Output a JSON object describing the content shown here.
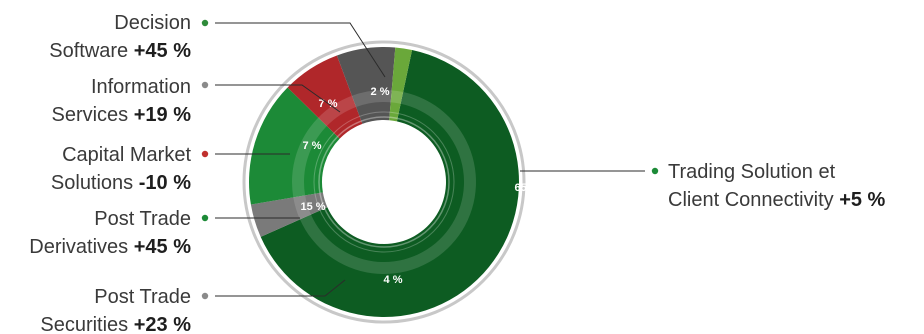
{
  "chart_data": {
    "type": "pie",
    "style": "donut",
    "title": "",
    "colors": {
      "dark_green": "#0d5c22",
      "green": "#1c8a37",
      "light_green": "#6aa83a",
      "dark_gray": "#555555",
      "gray": "#7a7a7a",
      "red": "#b0272a",
      "outline": "#c8c8c8"
    },
    "slices": [
      {
        "id": "trading",
        "label_lines": [
          "Trading Solution et",
          "Client Connectivity"
        ],
        "change": "+5 %",
        "value": 65,
        "value_label": "65 %",
        "color": "#0d5c22",
        "dot_color": "#1c8a37"
      },
      {
        "id": "securities",
        "label_lines": [
          "Post Trade",
          "Securities"
        ],
        "change": "+23 %",
        "value": 4,
        "value_label": "4 %",
        "color": "#7a7a7a",
        "dot_color": "#8a8a8a"
      },
      {
        "id": "derivatives",
        "label_lines": [
          "Post Trade",
          "Derivatives"
        ],
        "change": "+45 %",
        "value": 15,
        "value_label": "15 %",
        "color": "#1c8a37",
        "dot_color": "#1c8a37"
      },
      {
        "id": "capital",
        "label_lines": [
          "Capital Market",
          "Solutions"
        ],
        "change": "-10 %",
        "value": 7,
        "value_label": "7 %",
        "color": "#b0272a",
        "dot_color": "#c0302e"
      },
      {
        "id": "information",
        "label_lines": [
          "Information",
          "Services"
        ],
        "change": "+19 %",
        "value": 7,
        "value_label": "7 %",
        "color": "#555555",
        "dot_color": "#8a8a8a"
      },
      {
        "id": "decision",
        "label_lines": [
          "Decision",
          "Software"
        ],
        "change": "+45 %",
        "value": 2,
        "value_label": "2 %",
        "color": "#6aa83a",
        "dot_color": "#2e8b3a"
      }
    ]
  }
}
